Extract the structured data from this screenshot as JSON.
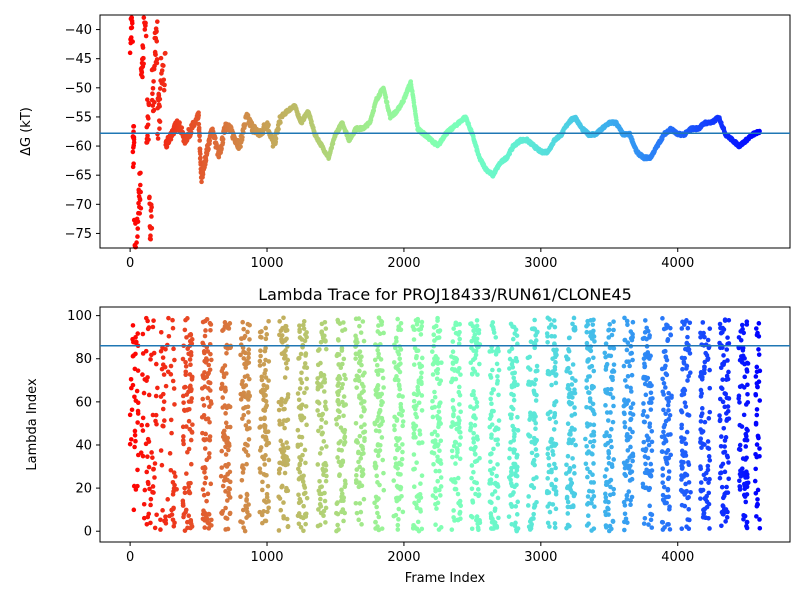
{
  "chart_data": [
    {
      "type": "scatter",
      "title": "",
      "xlabel": "",
      "ylabel": "ΔG (kT)",
      "xlim": [
        -220,
        4820
      ],
      "ylim": [
        -77.5,
        -37.5
      ],
      "x_ticks": [
        0,
        1000,
        2000,
        3000,
        4000
      ],
      "x_tick_labels": [
        "0",
        "1000",
        "2000",
        "3000",
        "4000"
      ],
      "y_ticks": [
        -75,
        -70,
        -65,
        -60,
        -55,
        -50,
        -45,
        -40
      ],
      "y_tick_labels": [
        "−75",
        "−70",
        "−65",
        "−60",
        "−55",
        "−50",
        "−45",
        "−40"
      ],
      "hline": -57.8,
      "hline_color": "#1f77b4",
      "colormap": "rainbow_r",
      "x_range": [
        0,
        4600
      ],
      "series": [
        {
          "points": [
            [
              0,
              -40
            ],
            [
              20,
              -60
            ],
            [
              30,
              -76
            ],
            [
              60,
              -68
            ],
            [
              80,
              -46
            ],
            [
              100,
              -38
            ],
            [
              120,
              -56
            ],
            [
              140,
              -72
            ],
            [
              160,
              -50
            ],
            [
              180,
              -42
            ],
            [
              200,
              -55
            ],
            [
              220,
              -48
            ],
            [
              260,
              -60
            ],
            [
              300,
              -58
            ],
            [
              350,
              -56
            ],
            [
              400,
              -59
            ],
            [
              450,
              -57
            ],
            [
              500,
              -55
            ],
            [
              520,
              -66
            ],
            [
              560,
              -61
            ],
            [
              600,
              -57
            ],
            [
              650,
              -62
            ],
            [
              700,
              -56
            ],
            [
              750,
              -58
            ],
            [
              800,
              -60
            ],
            [
              850,
              -55
            ],
            [
              900,
              -57
            ],
            [
              950,
              -58
            ],
            [
              1000,
              -56
            ],
            [
              1050,
              -60
            ],
            [
              1100,
              -55
            ],
            [
              1150,
              -54
            ],
            [
              1200,
              -53
            ],
            [
              1250,
              -56
            ],
            [
              1300,
              -54
            ],
            [
              1350,
              -58
            ],
            [
              1400,
              -60
            ],
            [
              1450,
              -62
            ],
            [
              1500,
              -58
            ],
            [
              1550,
              -56
            ],
            [
              1600,
              -59
            ],
            [
              1650,
              -57
            ],
            [
              1700,
              -57
            ],
            [
              1750,
              -56
            ],
            [
              1800,
              -52
            ],
            [
              1850,
              -50
            ],
            [
              1900,
              -55
            ],
            [
              1950,
              -54
            ],
            [
              2000,
              -52
            ],
            [
              2050,
              -49
            ],
            [
              2100,
              -57
            ],
            [
              2150,
              -58
            ],
            [
              2200,
              -59
            ],
            [
              2250,
              -60
            ],
            [
              2300,
              -58
            ],
            [
              2350,
              -57
            ],
            [
              2400,
              -56
            ],
            [
              2450,
              -55
            ],
            [
              2500,
              -58
            ],
            [
              2550,
              -62
            ],
            [
              2600,
              -64
            ],
            [
              2650,
              -65
            ],
            [
              2700,
              -63
            ],
            [
              2750,
              -62
            ],
            [
              2800,
              -60
            ],
            [
              2850,
              -59
            ],
            [
              2900,
              -59
            ],
            [
              2950,
              -60
            ],
            [
              3000,
              -61
            ],
            [
              3050,
              -61
            ],
            [
              3100,
              -59
            ],
            [
              3150,
              -58
            ],
            [
              3200,
              -56
            ],
            [
              3250,
              -55
            ],
            [
              3300,
              -57
            ],
            [
              3350,
              -58
            ],
            [
              3400,
              -58
            ],
            [
              3450,
              -57
            ],
            [
              3500,
              -56
            ],
            [
              3550,
              -56
            ],
            [
              3600,
              -58
            ],
            [
              3650,
              -58
            ],
            [
              3700,
              -61
            ],
            [
              3750,
              -62
            ],
            [
              3800,
              -62
            ],
            [
              3850,
              -60
            ],
            [
              3900,
              -58
            ],
            [
              3950,
              -57
            ],
            [
              4000,
              -58
            ],
            [
              4050,
              -58
            ],
            [
              4100,
              -57
            ],
            [
              4150,
              -57
            ],
            [
              4200,
              -56
            ],
            [
              4250,
              -56
            ],
            [
              4300,
              -55
            ],
            [
              4350,
              -58
            ],
            [
              4400,
              -59
            ],
            [
              4450,
              -60
            ],
            [
              4500,
              -59
            ],
            [
              4550,
              -58
            ],
            [
              4600,
              -57.5
            ]
          ]
        }
      ]
    },
    {
      "type": "scatter",
      "title": "Lambda Trace for PROJ18433/RUN61/CLONE45",
      "xlabel": "Frame Index",
      "ylabel": "Lambda Index",
      "xlim": [
        -220,
        4820
      ],
      "ylim": [
        -5,
        104
      ],
      "x_ticks": [
        0,
        1000,
        2000,
        3000,
        4000
      ],
      "x_tick_labels": [
        "0",
        "1000",
        "2000",
        "3000",
        "4000"
      ],
      "y_ticks": [
        0,
        20,
        40,
        60,
        80,
        100
      ],
      "y_tick_labels": [
        "0",
        "20",
        "40",
        "60",
        "80",
        "100"
      ],
      "hline": 86,
      "hline_color": "#1f77b4",
      "colormap": "rainbow_r",
      "x_range": [
        0,
        4600
      ],
      "value_range": [
        0,
        99
      ],
      "columns": [
        0,
        140,
        280,
        420,
        560,
        700,
        840,
        980,
        1120,
        1260,
        1400,
        1540,
        1680,
        1820,
        1960,
        2100,
        2240,
        2380,
        2520,
        2660,
        2800,
        2940,
        3080,
        3220,
        3360,
        3500,
        3640,
        3780,
        3920,
        4060,
        4200,
        4340,
        4480,
        4600
      ]
    }
  ]
}
